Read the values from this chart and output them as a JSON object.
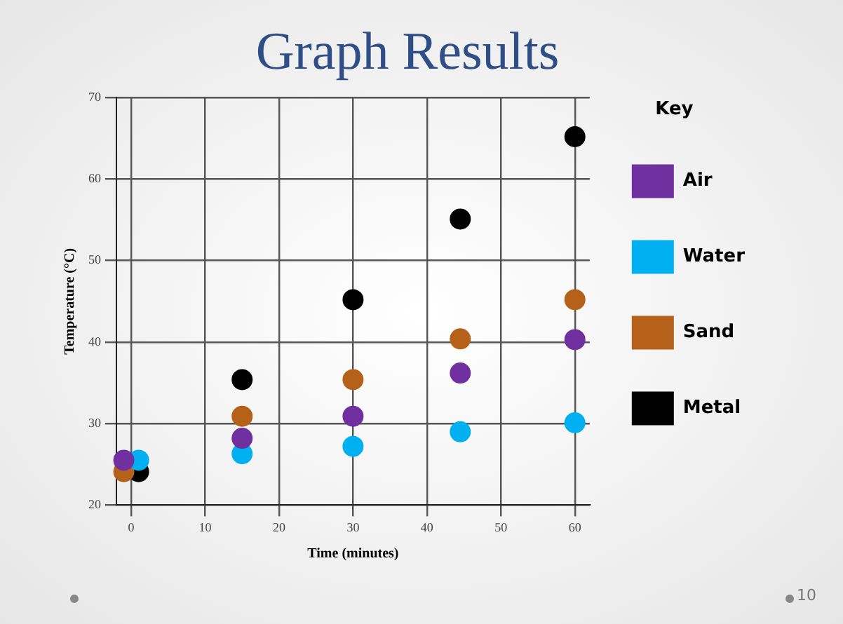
{
  "chart_data": {
    "type": "scatter",
    "title": "Graph Results",
    "xlabel": "Time (minutes)",
    "ylabel": "Temperature (°C)",
    "legend_title": "Key",
    "legend": "right",
    "marker": "circle",
    "grid": true,
    "xlim": [
      -2,
      62
    ],
    "xticks": [
      0,
      10,
      20,
      30,
      40,
      50,
      60
    ],
    "ylim": [
      20,
      70
    ],
    "yticks": [
      20,
      30,
      40,
      50,
      60,
      70
    ],
    "series": [
      {
        "name": "Air",
        "color": "#7030a0",
        "x": [
          -1,
          15,
          30,
          44.5,
          60
        ],
        "values": [
          25.5,
          28.2,
          30.9,
          36.2,
          40.3
        ]
      },
      {
        "name": "Water",
        "color": "#00b0f0",
        "x": [
          1,
          15,
          30,
          44.5,
          60
        ],
        "values": [
          25.5,
          26.3,
          27.2,
          29,
          30.1
        ]
      },
      {
        "name": "Sand",
        "color": "#b5611a",
        "x": [
          -1,
          15,
          30,
          44.5,
          60
        ],
        "values": [
          24.1,
          30.9,
          35.4,
          40.4,
          45.2
        ]
      },
      {
        "name": "Metal",
        "color": "#000000",
        "x": [
          1,
          15,
          30,
          44.5,
          60
        ],
        "values": [
          24.1,
          35.4,
          45.2,
          55.1,
          65.2
        ]
      }
    ],
    "annotations": [
      "10"
    ]
  }
}
